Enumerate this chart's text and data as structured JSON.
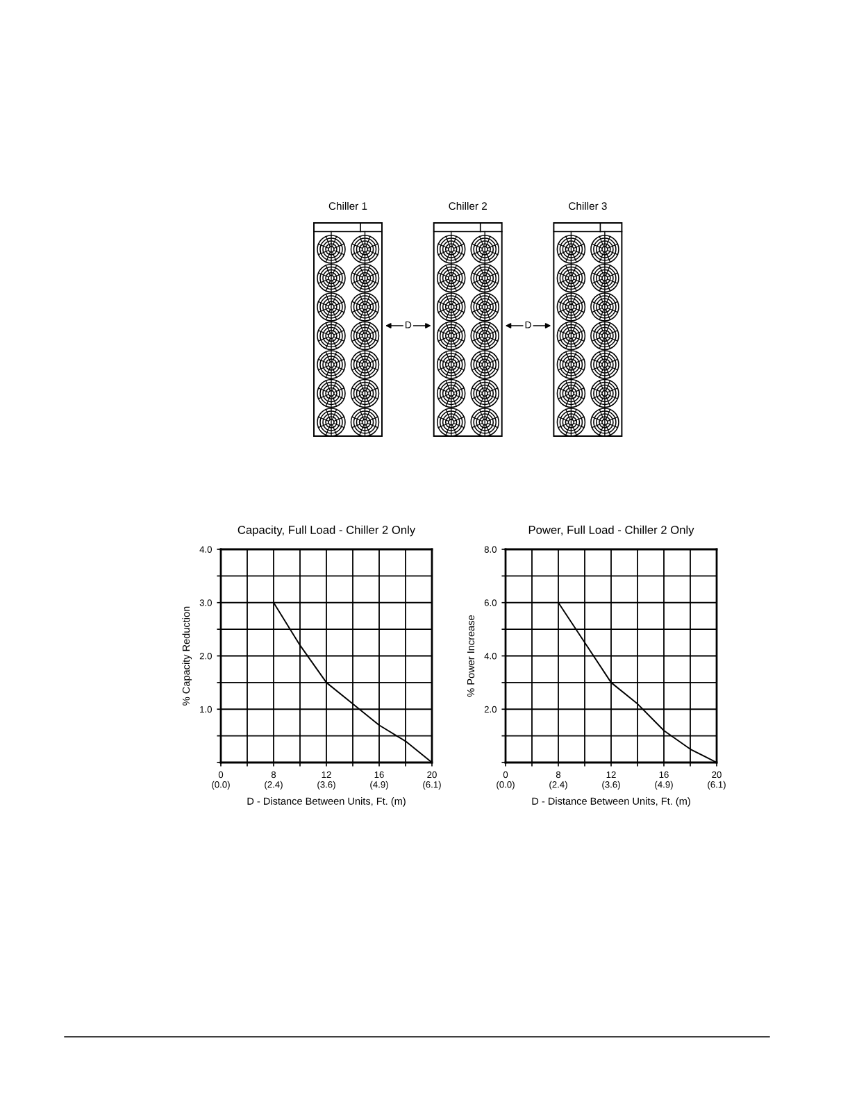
{
  "chart_data": [
    {
      "type": "other",
      "annotations": [
        "Chiller 1",
        "Chiller 2",
        "Chiller 3",
        "D",
        "D"
      ]
    },
    {
      "type": "line",
      "title": "Capacity, Full Load - Chiller 2 Only",
      "xlabel": "D - Distance Between Units, Ft. (m)",
      "ylabel": "% Capacity Reduction",
      "categories": [
        "0\n(0.0)",
        null,
        "8\n(2.4)",
        null,
        "12\n(3.6)",
        null,
        "16\n(4.9)",
        null,
        "20\n(6.1)"
      ],
      "values": [
        null,
        null,
        3.0,
        2.2,
        1.5,
        1.1,
        0.7,
        0.4,
        0.0
      ],
      "color": "#000000",
      "ylim": [
        0,
        4
      ],
      "yticks": [
        {
          "value": 0,
          "label": null
        },
        {
          "value": 0.5,
          "label": null
        },
        {
          "value": 1,
          "label": "1.0"
        },
        {
          "value": 1.5,
          "label": null
        },
        {
          "value": 2,
          "label": "2.0"
        },
        {
          "value": 2.5,
          "label": null
        },
        {
          "value": 3,
          "label": "3.0"
        },
        {
          "value": 3.5,
          "label": null
        },
        {
          "value": 4,
          "label": "4.0"
        }
      ],
      "grid": true
    },
    {
      "type": "line",
      "title": "Power, Full Load - Chiller 2 Only",
      "xlabel": "D - Distance Between Units, Ft. (m)",
      "ylabel": "% Power Increase",
      "categories": [
        "0\n(0.0)",
        null,
        "8\n(2.4)",
        null,
        "12\n(3.6)",
        null,
        "16\n(4.9)",
        null,
        "20\n(6.1)"
      ],
      "values": [
        null,
        null,
        6.0,
        4.5,
        3.0,
        2.2,
        1.2,
        0.5,
        0.0
      ],
      "color": "#000000",
      "ylim": [
        0,
        8
      ],
      "yticks": [
        {
          "value": 0,
          "label": null
        },
        {
          "value": 1,
          "label": null
        },
        {
          "value": 2,
          "label": "2.0"
        },
        {
          "value": 3,
          "label": null
        },
        {
          "value": 4,
          "label": "4.0"
        },
        {
          "value": 5,
          "label": null
        },
        {
          "value": 6,
          "label": "6.0"
        },
        {
          "value": 7,
          "label": null
        },
        {
          "value": 8,
          "label": "8.0"
        }
      ],
      "grid": true
    }
  ]
}
